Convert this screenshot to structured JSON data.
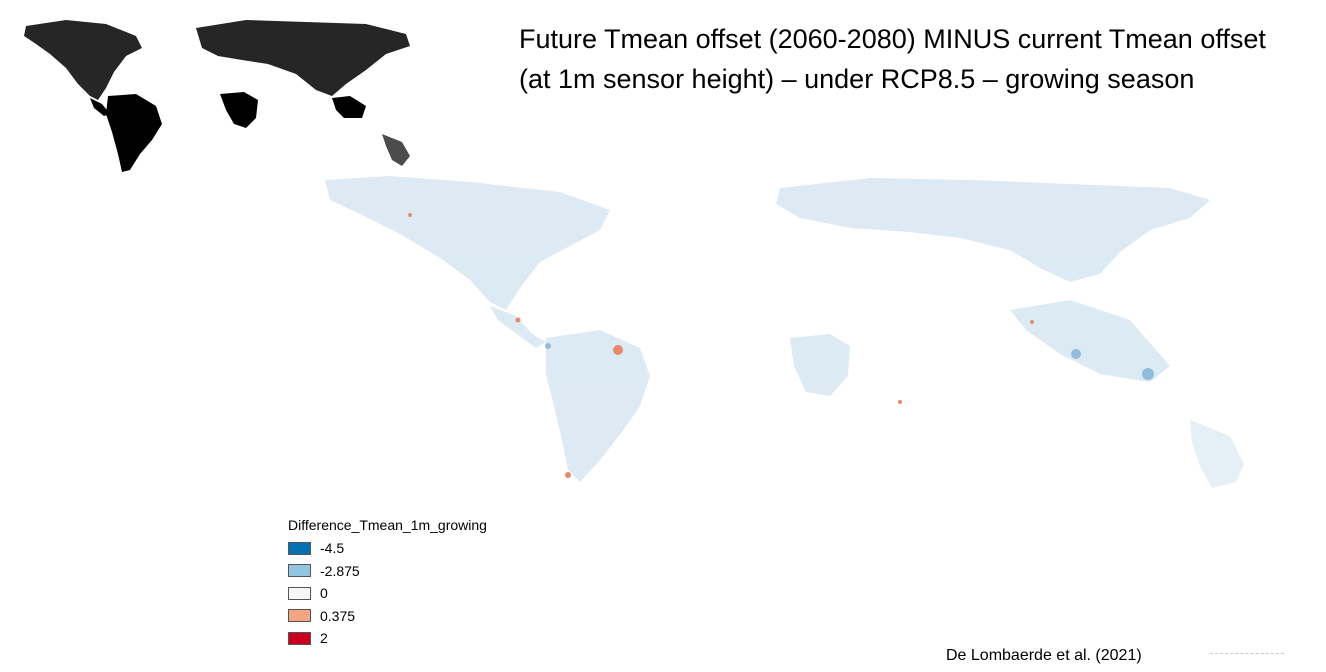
{
  "title": {
    "line1": "Future Tmean offset (2060-2080) MINUS current Tmean offset",
    "line2": "(at 1m sensor height) – under RCP8.5 – growing season"
  },
  "legend": {
    "title": "Difference_Tmean_1m_growing",
    "items": [
      {
        "label": "-4.5",
        "color": "#0571b0"
      },
      {
        "label": "-2.875",
        "color": "#92c5de"
      },
      {
        "label": "0",
        "color": "#f7f7f7"
      },
      {
        "label": "0.375",
        "color": "#f4a582"
      },
      {
        "label": "2",
        "color": "#ca0020"
      }
    ]
  },
  "citation": "De Lombaerde et al. (2021)",
  "map": {
    "inset_fill": "#000000",
    "main_fill": "#d9e8f3",
    "warm_spot_color": "#e8896a",
    "cool_spot_color": "#8fbcdc"
  }
}
